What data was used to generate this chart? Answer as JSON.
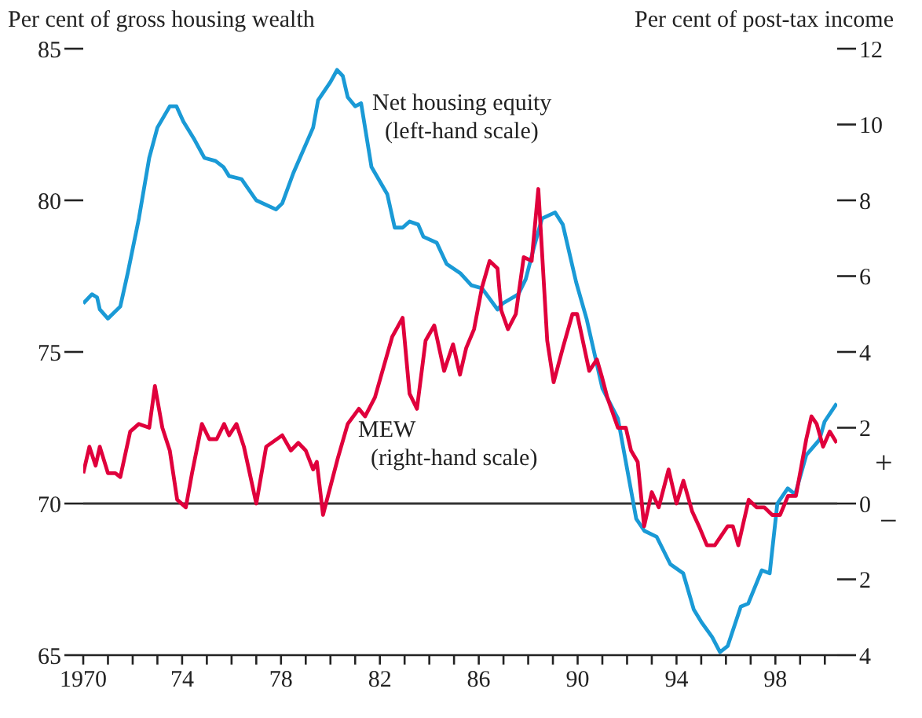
{
  "chart_data": {
    "type": "line",
    "ylabel": "Per cent of gross housing wealth",
    "y2label": "Per cent of post-tax income",
    "annotations": [
      "+",
      "−"
    ],
    "xlim": [
      1970,
      2000.5
    ],
    "xticks": [
      {
        "value": 1970,
        "label": "1970"
      },
      {
        "value": 1971,
        "label": null
      },
      {
        "value": 1972,
        "label": null
      },
      {
        "value": 1973,
        "label": null
      },
      {
        "value": 1974,
        "label": "74"
      },
      {
        "value": 1975,
        "label": null
      },
      {
        "value": 1976,
        "label": null
      },
      {
        "value": 1977,
        "label": null
      },
      {
        "value": 1978,
        "label": "78"
      },
      {
        "value": 1979,
        "label": null
      },
      {
        "value": 1980,
        "label": null
      },
      {
        "value": 1981,
        "label": null
      },
      {
        "value": 1982,
        "label": "82"
      },
      {
        "value": 1983,
        "label": null
      },
      {
        "value": 1984,
        "label": null
      },
      {
        "value": 1985,
        "label": null
      },
      {
        "value": 1986,
        "label": "86"
      },
      {
        "value": 1987,
        "label": null
      },
      {
        "value": 1988,
        "label": null
      },
      {
        "value": 1989,
        "label": null
      },
      {
        "value": 1990,
        "label": "90"
      },
      {
        "value": 1991,
        "label": null
      },
      {
        "value": 1992,
        "label": null
      },
      {
        "value": 1993,
        "label": null
      },
      {
        "value": 1994,
        "label": "94"
      },
      {
        "value": 1995,
        "label": null
      },
      {
        "value": 1996,
        "label": null
      },
      {
        "value": 1997,
        "label": null
      },
      {
        "value": 1998,
        "label": "98"
      },
      {
        "value": 1999,
        "label": null
      },
      {
        "value": 2000,
        "label": null
      }
    ],
    "ylim": [
      65,
      85
    ],
    "yticks": [
      65,
      70,
      75,
      80,
      85
    ],
    "y2lim": [
      -4,
      12
    ],
    "y2ticks": [
      {
        "value": -4,
        "label": "4"
      },
      {
        "value": -2,
        "label": "2"
      },
      0,
      2,
      4,
      6,
      8,
      10,
      12
    ],
    "ref_lines": [
      {
        "axis": "y",
        "value": 70,
        "color": "#333333"
      }
    ],
    "series": [
      {
        "name": "Net housing equity (left-hand scale)",
        "color": "#1a9ad6",
        "x": [
          1970.0,
          1970.35,
          1970.56,
          1970.67,
          1971.0,
          1971.5,
          1971.8,
          1972.25,
          1972.67,
          1973.0,
          1973.5,
          1973.77,
          1974.05,
          1974.5,
          1974.9,
          1975.35,
          1975.67,
          1975.9,
          1976.4,
          1977.0,
          1977.8,
          1978.05,
          1978.5,
          1979.3,
          1979.5,
          1980.0,
          1980.27,
          1980.5,
          1980.7,
          1981.0,
          1981.24,
          1981.66,
          1982.3,
          1982.6,
          1982.92,
          1983.2,
          1983.55,
          1983.76,
          1984.3,
          1984.7,
          1985.25,
          1985.7,
          1986.13,
          1986.76,
          1986.97,
          1987.6,
          1987.9,
          1988.25,
          1988.56,
          1989.09,
          1989.4,
          1989.94,
          1990.36,
          1991.0,
          1991.63,
          1992.37,
          1992.7,
          1993.2,
          1993.75,
          1994.27,
          1994.7,
          1995.0,
          1995.44,
          1995.76,
          1996.07,
          1996.6,
          1996.9,
          1997.45,
          1997.77,
          1998.08,
          1998.5,
          1998.8,
          1999.25,
          1999.78,
          1999.99,
          2000.48
        ],
        "values": [
          76.6,
          76.9,
          76.8,
          76.4,
          76.1,
          76.5,
          77.6,
          79.4,
          81.4,
          82.4,
          83.1,
          83.1,
          82.6,
          82.0,
          81.4,
          81.3,
          81.1,
          80.8,
          80.7,
          80.0,
          79.7,
          79.9,
          80.9,
          82.4,
          83.3,
          83.9,
          84.3,
          84.1,
          83.4,
          83.1,
          83.2,
          81.1,
          80.2,
          79.1,
          79.1,
          79.3,
          79.2,
          78.8,
          78.6,
          77.9,
          77.6,
          77.2,
          77.1,
          76.4,
          76.6,
          76.9,
          77.4,
          78.5,
          79.4,
          79.6,
          79.2,
          77.3,
          76.1,
          73.8,
          72.8,
          69.5,
          69.1,
          68.9,
          68.0,
          67.7,
          66.5,
          66.1,
          65.6,
          65.1,
          65.3,
          66.6,
          66.7,
          67.8,
          67.7,
          70.0,
          70.5,
          70.3,
          71.6,
          72.1,
          72.7,
          73.3
        ]
      },
      {
        "name": "MEW (right-hand scale)",
        "color": "#e0003c",
        "axis": "y2",
        "x": [
          1970.0,
          1970.25,
          1970.5,
          1970.67,
          1971.0,
          1971.3,
          1971.5,
          1971.9,
          1972.25,
          1972.67,
          1972.9,
          1973.2,
          1973.5,
          1973.8,
          1974.15,
          1974.4,
          1974.8,
          1975.1,
          1975.4,
          1975.7,
          1975.9,
          1976.2,
          1976.5,
          1977.0,
          1977.4,
          1978.05,
          1978.4,
          1978.7,
          1979.0,
          1979.3,
          1979.45,
          1979.7,
          1980.3,
          1980.7,
          1981.15,
          1981.4,
          1981.8,
          1982.5,
          1982.92,
          1983.2,
          1983.5,
          1983.85,
          1984.2,
          1984.6,
          1984.96,
          1985.24,
          1985.49,
          1985.81,
          1986.13,
          1986.44,
          1986.76,
          1986.91,
          1987.18,
          1987.5,
          1987.82,
          1988.14,
          1988.41,
          1988.77,
          1989.03,
          1989.4,
          1989.79,
          1989.98,
          1990.47,
          1990.78,
          1991.0,
          1991.2,
          1991.63,
          1991.95,
          1992.16,
          1992.43,
          1992.69,
          1993.0,
          1993.28,
          1993.68,
          1994.0,
          1994.28,
          1994.63,
          1994.91,
          1995.23,
          1995.55,
          1996.07,
          1996.28,
          1996.5,
          1996.92,
          1997.24,
          1997.55,
          1997.87,
          1998.19,
          1998.51,
          1998.83,
          1999.25,
          1999.46,
          1999.67,
          1999.93,
          2000.2,
          2000.48
        ],
        "values": [
          0.8,
          1.5,
          1.0,
          1.5,
          0.8,
          0.8,
          0.7,
          1.9,
          2.1,
          2.0,
          3.1,
          2.0,
          1.4,
          0.1,
          -0.1,
          0.8,
          2.1,
          1.7,
          1.7,
          2.1,
          1.8,
          2.1,
          1.5,
          0.0,
          1.5,
          1.8,
          1.4,
          1.6,
          1.4,
          0.9,
          1.1,
          -0.3,
          1.2,
          2.1,
          2.5,
          2.3,
          2.8,
          4.4,
          4.9,
          2.9,
          2.5,
          4.3,
          4.7,
          3.5,
          4.2,
          3.4,
          4.1,
          4.6,
          5.7,
          6.4,
          6.2,
          5.1,
          4.6,
          5.0,
          6.5,
          6.4,
          8.3,
          4.3,
          3.2,
          4.1,
          5.0,
          5.0,
          3.5,
          3.8,
          3.3,
          2.8,
          2.0,
          2.0,
          1.4,
          1.1,
          -0.6,
          0.3,
          -0.1,
          0.9,
          0.0,
          0.6,
          -0.2,
          -0.6,
          -1.1,
          -1.1,
          -0.6,
          -0.6,
          -1.1,
          0.1,
          -0.1,
          -0.1,
          -0.3,
          -0.3,
          0.2,
          0.2,
          1.7,
          2.3,
          2.1,
          1.5,
          1.9,
          1.6
        ]
      }
    ]
  }
}
